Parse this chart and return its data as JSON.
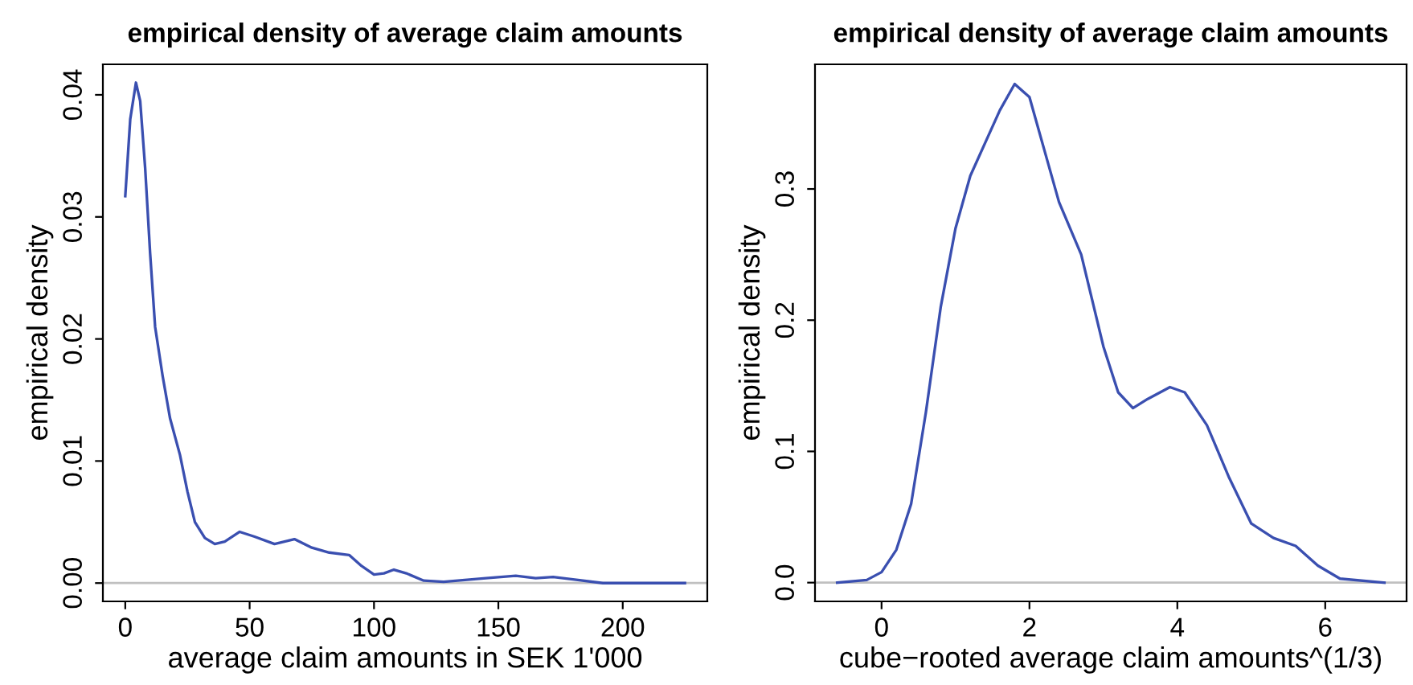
{
  "chart_data": [
    {
      "type": "line",
      "title": "empirical density of average claim amounts",
      "xlabel": "average claim amounts in SEK 1'000",
      "ylabel": "empirical density",
      "xlim": [
        -9,
        234
      ],
      "ylim": [
        -0.0015,
        0.0425
      ],
      "xticks": [
        0,
        50,
        100,
        150,
        200
      ],
      "yticks": [
        {
          "value": 0,
          "label": "0.00"
        },
        {
          "value": 0.01,
          "label": "0.01"
        },
        {
          "value": 0.02,
          "label": "0.02"
        },
        {
          "value": 0.03,
          "label": "0.03"
        },
        {
          "value": 0.04,
          "label": "0.04"
        }
      ],
      "ref_lines": [
        {
          "axis": "y",
          "value": 0,
          "color": "#c0c0c0"
        }
      ],
      "series": [
        {
          "color": "#3a4fb0",
          "x": [
            0,
            2,
            4.3,
            6,
            8,
            10,
            12,
            15,
            18,
            22,
            25,
            28,
            32,
            36,
            40,
            46,
            52,
            60,
            68,
            75,
            82,
            90,
            95,
            100,
            104,
            108,
            113,
            120,
            128,
            145,
            157,
            165,
            172,
            180,
            192,
            200,
            225
          ],
          "values": [
            0.0317,
            0.038,
            0.041,
            0.0395,
            0.034,
            0.027,
            0.021,
            0.017,
            0.0135,
            0.0105,
            0.0075,
            0.005,
            0.0037,
            0.0032,
            0.0034,
            0.0042,
            0.0038,
            0.0032,
            0.0036,
            0.0029,
            0.0025,
            0.0023,
            0.0014,
            0.0007,
            0.0008,
            0.0011,
            0.0008,
            0.0002,
            0.0001,
            0.0004,
            0.0006,
            0.0004,
            0.0005,
            0.0003,
            0,
            0,
            0
          ]
        }
      ]
    },
    {
      "type": "line",
      "title": "empirical density of average claim amounts",
      "xlabel": "cube−rooted average claim amounts^(1/3)",
      "ylabel": "empirical density",
      "xlim": [
        -0.9,
        7.1
      ],
      "ylim": [
        -0.0143,
        0.395
      ],
      "xticks": [
        0,
        2,
        4,
        6
      ],
      "yticks": [
        {
          "value": 0,
          "label": "0.0"
        },
        0.1,
        0.2,
        0.3
      ],
      "ref_lines": [
        {
          "axis": "y",
          "value": 0,
          "color": "#c0c0c0"
        }
      ],
      "series": [
        {
          "color": "#3a4fb0",
          "x": [
            -0.6,
            -0.2,
            0,
            0.2,
            0.4,
            0.6,
            0.8,
            1.0,
            1.2,
            1.4,
            1.6,
            1.8,
            2.0,
            2.2,
            2.4,
            2.7,
            3.0,
            3.2,
            3.4,
            3.6,
            3.9,
            4.1,
            4.4,
            4.7,
            5.0,
            5.3,
            5.6,
            5.9,
            6.2,
            6.8
          ],
          "values": [
            0,
            0.002,
            0.008,
            0.025,
            0.06,
            0.13,
            0.21,
            0.27,
            0.31,
            0.335,
            0.36,
            0.38,
            0.37,
            0.33,
            0.29,
            0.25,
            0.18,
            0.145,
            0.133,
            0.14,
            0.149,
            0.145,
            0.12,
            0.08,
            0.045,
            0.034,
            0.028,
            0.013,
            0.003,
            0
          ]
        }
      ]
    }
  ]
}
